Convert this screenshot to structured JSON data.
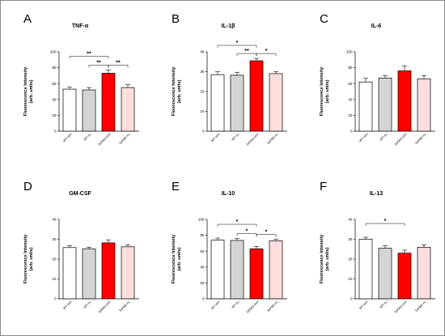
{
  "colors": {
    "WT-Veh": "#ffffff",
    "WT-H2": "#d4d4d4",
    "5xFAD-Veh": "#ff0000",
    "5xFAD-H2": "#fbdedd"
  },
  "chart_data": [
    {
      "type": "bar",
      "letter": "A",
      "title": "TNF-α",
      "ylabel": "Fluorescence Intensity\n(arb. units)",
      "ylim": [
        0,
        100
      ],
      "yticks": [
        0,
        20,
        40,
        60,
        80,
        100
      ],
      "categories": [
        "WT-Veh",
        "WT-H₂",
        "5xFAD-Veh",
        "5xFAD-H₂"
      ],
      "values": [
        53,
        52,
        73,
        55
      ],
      "errors": [
        2.5,
        3,
        4,
        3.5
      ],
      "significance": [
        {
          "pair": [
            0,
            2
          ],
          "label": "**"
        },
        {
          "pair": [
            1,
            2
          ],
          "label": "**"
        },
        {
          "pair": [
            2,
            3
          ],
          "label": "**"
        }
      ]
    },
    {
      "type": "bar",
      "letter": "B",
      "title": "IL-1β",
      "ylabel": "Fluorescence Intensity\n(arb. units)",
      "ylim": [
        0,
        40
      ],
      "yticks": [
        0,
        10,
        20,
        30,
        40
      ],
      "categories": [
        "WT-Veh",
        "WT-H₂",
        "5xFAD-Veh",
        "5xFAD-H₂"
      ],
      "values": [
        28.5,
        28.2,
        35.5,
        29
      ],
      "errors": [
        1.5,
        1.5,
        1.2,
        1.0
      ],
      "significance": [
        {
          "pair": [
            0,
            2
          ],
          "label": "*"
        },
        {
          "pair": [
            1,
            2
          ],
          "label": "**"
        },
        {
          "pair": [
            2,
            3
          ],
          "label": "*"
        }
      ]
    },
    {
      "type": "bar",
      "letter": "C",
      "title": "IL-6",
      "ylabel": "Fluorescence Intensity\n(arb. units)",
      "ylim": [
        0,
        100
      ],
      "yticks": [
        0,
        20,
        40,
        60,
        80,
        100
      ],
      "categories": [
        "WT-Veh",
        "WT-H₂",
        "5xFAD-Veh",
        "5xFAD-H₂"
      ],
      "values": [
        62,
        67,
        76,
        66
      ],
      "errors": [
        4.5,
        3,
        6,
        4
      ],
      "significance": []
    },
    {
      "type": "bar",
      "letter": "D",
      "title": "GM-CSF",
      "ylabel": "Fluorescence Intensity\n(arb. units)",
      "ylim": [
        0,
        40
      ],
      "yticks": [
        0,
        10,
        20,
        30,
        40
      ],
      "categories": [
        "WT-Veh",
        "WT-H₂",
        "5xFAD-Veh",
        "5xFAD-H₂"
      ],
      "values": [
        25.8,
        25.2,
        28.2,
        26.2
      ],
      "errors": [
        1.0,
        0.8,
        1.5,
        0.9
      ],
      "significance": []
    },
    {
      "type": "bar",
      "letter": "E",
      "title": "IL-10",
      "ylabel": "Fluorescence Intensity\n(arb. units)",
      "ylim": [
        0,
        100
      ],
      "yticks": [
        0,
        20,
        40,
        60,
        80,
        100
      ],
      "categories": [
        "WT-Veh",
        "WT-H₂",
        "5xFAD-Veh",
        "5xFAD-H₂"
      ],
      "values": [
        74,
        73.5,
        63,
        73
      ],
      "errors": [
        2.5,
        2.5,
        3,
        2
      ],
      "significance": [
        {
          "pair": [
            0,
            2
          ],
          "label": "*"
        },
        {
          "pair": [
            1,
            2
          ],
          "label": "*"
        },
        {
          "pair": [
            2,
            3
          ],
          "label": "*"
        }
      ]
    },
    {
      "type": "bar",
      "letter": "F",
      "title": "IL-13",
      "ylabel": "Fluorescence Intensity\n(arb. units)",
      "ylim": [
        0,
        40
      ],
      "yticks": [
        0,
        10,
        20,
        30,
        40
      ],
      "categories": [
        "WT-Veh",
        "WT-H₂",
        "5xFAD-Veh",
        "5xFAD-H₂"
      ],
      "values": [
        30,
        25.5,
        23,
        26
      ],
      "errors": [
        1.0,
        1.3,
        1.5,
        1.2
      ],
      "significance": [
        {
          "pair": [
            0,
            2
          ],
          "label": "*"
        }
      ]
    }
  ]
}
